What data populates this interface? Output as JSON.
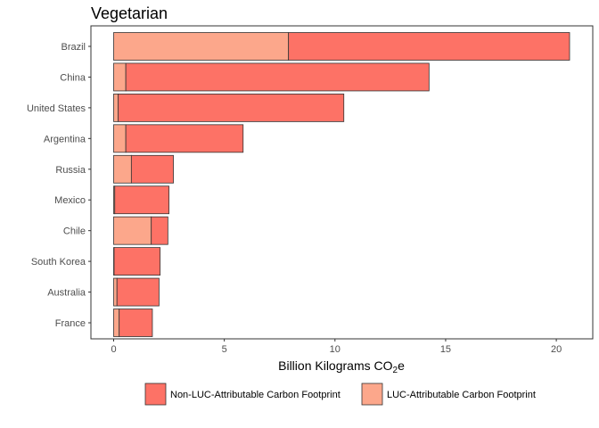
{
  "chart_data": {
    "type": "bar",
    "orientation": "horizontal",
    "stacked": true,
    "title": "Vegetarian",
    "xlabel": "Billion Kilograms CO",
    "xlabel_subscript": "2",
    "xlabel_suffix": "e",
    "ylabel": "",
    "xlim": [
      0,
      20.6
    ],
    "x_ticks": [
      0,
      5,
      10,
      15,
      20
    ],
    "grid": false,
    "legend_position": "bottom",
    "categories": [
      "Brazil",
      "China",
      "United States",
      "Argentina",
      "Russia",
      "Mexico",
      "Chile",
      "South Korea",
      "Australia",
      "France"
    ],
    "series": [
      {
        "name": "LUC-Attributable Carbon Footprint",
        "color": "#fca78b",
        "values": [
          7.9,
          0.55,
          0.2,
          0.55,
          0.8,
          0.05,
          1.7,
          0.02,
          0.15,
          0.25
        ]
      },
      {
        "name": "Non-LUC-Attributable Carbon Footprint",
        "color": "#fd7266",
        "values": [
          12.7,
          13.7,
          10.2,
          5.3,
          1.9,
          2.45,
          0.75,
          2.08,
          1.9,
          1.5
        ]
      }
    ],
    "legend_order": [
      "Non-LUC-Attributable Carbon Footprint",
      "LUC-Attributable Carbon Footprint"
    ]
  }
}
